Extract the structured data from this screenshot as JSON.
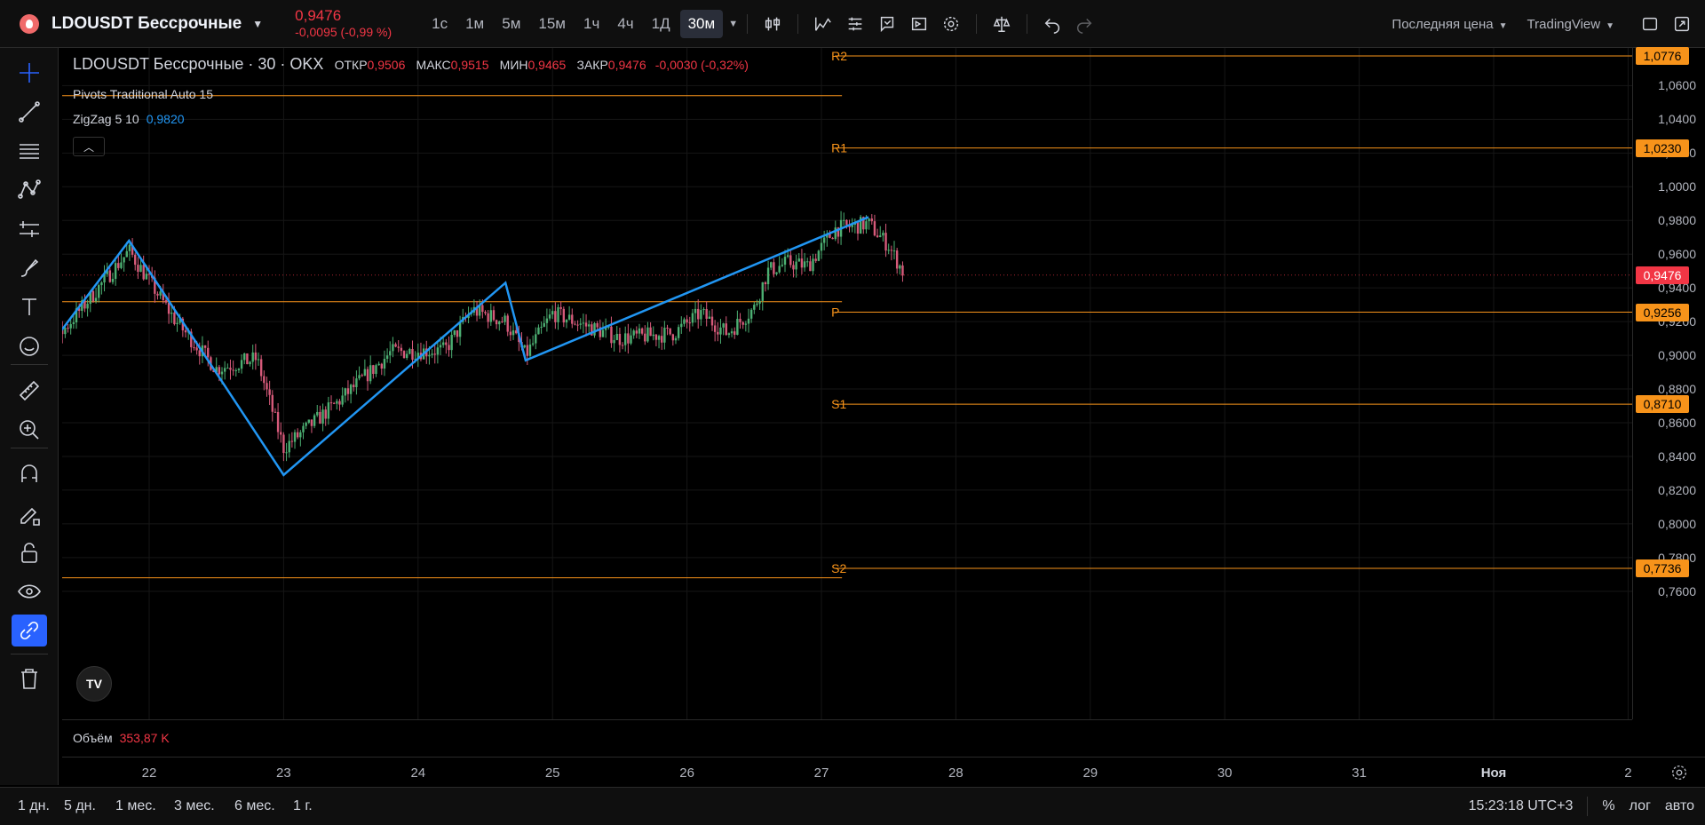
{
  "header": {
    "symbol": "LDOUSDT Бессрочные",
    "price": "0,9476",
    "change": "-0,0095 (-0,99 %)",
    "timeframes": [
      "1с",
      "1м",
      "5м",
      "15м",
      "1ч",
      "4ч",
      "1Д",
      "30м"
    ],
    "price_type": "Последняя цена",
    "provider": "TradingView"
  },
  "legend": {
    "title": "LDOUSDT Бессрочные · 30 · OKX",
    "open_label": "ОТКР",
    "open": "0,9506",
    "high_label": "МАКС",
    "high": "0,9515",
    "low_label": "МИН",
    "low": "0,9465",
    "close_label": "ЗАКР",
    "close": "0,9476",
    "change": "-0,0030 (-0,32%)"
  },
  "indicators": {
    "pivots": "Pivots Traditional Auto 15",
    "zigzag_name": "ZigZag 5 10",
    "zigzag_value": "0,9820"
  },
  "volume": {
    "label": "Объём",
    "value": "353,87 K"
  },
  "chart_data": {
    "type": "candlestick",
    "symbol": "LDOUSDT",
    "interval": "30m",
    "y_ticks": [
      "1,0600",
      "1,0400",
      "1,0200",
      "1,0000",
      "0,9800",
      "0,9600",
      "0,9400",
      "0,9200",
      "0,9000",
      "0,8800",
      "0,8600",
      "0,8400",
      "0,8200",
      "0,8000",
      "0,7800",
      "0,7600"
    ],
    "x_ticks": [
      "22",
      "23",
      "24",
      "25",
      "26",
      "27",
      "28",
      "29",
      "30",
      "31",
      "Ноя",
      "2"
    ],
    "ylim": [
      0.76,
      1.078
    ],
    "last_price": 0.9476,
    "last_price_label": "0,9476",
    "pivots": [
      {
        "name": "R2",
        "value": 1.0776,
        "label": "1,0776"
      },
      {
        "name": "R1",
        "value": 1.023,
        "label": "1,0230"
      },
      {
        "name": "P",
        "value": 0.9256,
        "label": "0,9256"
      },
      {
        "name": "S1",
        "value": 0.871,
        "label": "0,8710"
      },
      {
        "name": "S2",
        "value": 0.7736,
        "label": "0,7736"
      }
    ],
    "zigzag": [
      {
        "day": 21.0,
        "price": 0.878
      },
      {
        "day": 21.85,
        "price": 0.968
      },
      {
        "day": 23.0,
        "price": 0.829
      },
      {
        "day": 24.65,
        "price": 0.943
      },
      {
        "day": 24.8,
        "price": 0.897
      },
      {
        "day": 27.35,
        "price": 0.982
      }
    ],
    "anchors": [
      {
        "day": 21.0,
        "price": 0.88
      },
      {
        "day": 21.85,
        "price": 0.962
      },
      {
        "day": 22.2,
        "price": 0.92
      },
      {
        "day": 22.5,
        "price": 0.892
      },
      {
        "day": 22.8,
        "price": 0.898
      },
      {
        "day": 23.0,
        "price": 0.845
      },
      {
        "day": 23.4,
        "price": 0.872
      },
      {
        "day": 23.8,
        "price": 0.902
      },
      {
        "day": 24.2,
        "price": 0.903
      },
      {
        "day": 24.4,
        "price": 0.927
      },
      {
        "day": 24.65,
        "price": 0.92
      },
      {
        "day": 24.8,
        "price": 0.9
      },
      {
        "day": 25.0,
        "price": 0.925
      },
      {
        "day": 25.5,
        "price": 0.91
      },
      {
        "day": 25.9,
        "price": 0.913
      },
      {
        "day": 26.1,
        "price": 0.925
      },
      {
        "day": 26.3,
        "price": 0.913
      },
      {
        "day": 26.5,
        "price": 0.928
      },
      {
        "day": 26.6,
        "price": 0.95
      },
      {
        "day": 26.75,
        "price": 0.955
      },
      {
        "day": 26.9,
        "price": 0.953
      },
      {
        "day": 27.1,
        "price": 0.975
      },
      {
        "day": 27.35,
        "price": 0.978
      },
      {
        "day": 27.5,
        "price": 0.965
      },
      {
        "day": 27.62,
        "price": 0.9476
      }
    ]
  },
  "time_axis": {
    "last_bold": "Ноя"
  },
  "bottom": {
    "ranges": [
      "1 дн.",
      "5 дн.",
      "1 мес.",
      "3 мес.",
      "6 мес.",
      "1 г."
    ],
    "clock": "15:23:18 UTC+3",
    "percent": "%",
    "log": "лог",
    "auto": "авто"
  },
  "colors": {
    "bull": "#4caf72",
    "bear": "#d65a7a",
    "pivot": "#f7931a",
    "zigzag": "#2196f3",
    "last": "#f23645"
  }
}
